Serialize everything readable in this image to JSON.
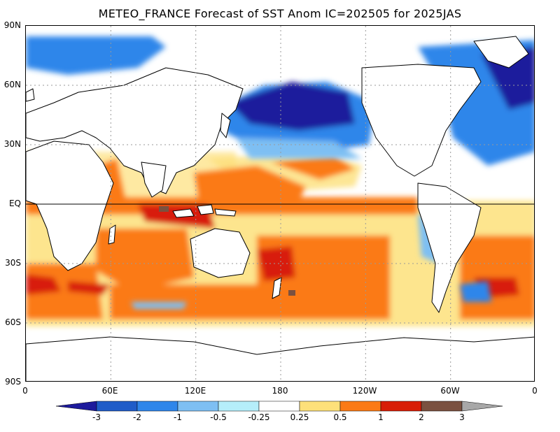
{
  "title": "METEO_FRANCE Forecast of SST Anom IC=202505 for 2025JAS",
  "y_axis_labels": [
    "90N",
    "60N",
    "30N",
    "EQ",
    "30S",
    "60S",
    "90S"
  ],
  "x_axis_labels": [
    "0",
    "60E",
    "120E",
    "180",
    "120W",
    "60W",
    "0"
  ],
  "colorbar": {
    "labels": [
      "-3",
      "-2",
      "-1",
      "-0.5",
      "-0.25",
      "0.25",
      "0.5",
      "1",
      "2",
      "3"
    ],
    "colors": [
      "#1d1a9c",
      "#1f5cc8",
      "#2f86ea",
      "#7ebff3",
      "#b5eefa",
      "#ffffff",
      "#fde07a",
      "#fb7a16",
      "#d81e07",
      "#7a5140",
      "#a8a8a8"
    ]
  },
  "legend_palette": {
    "land": "#ffffff",
    "coastline": "#000000",
    "grid": "#9a9a9a",
    "equator_line": "#000000"
  }
}
